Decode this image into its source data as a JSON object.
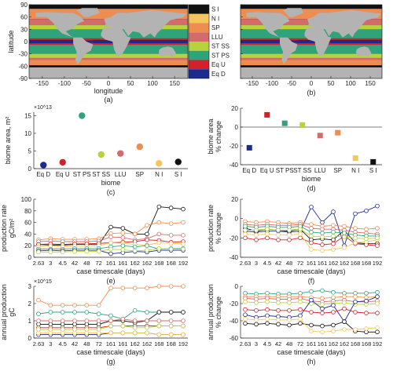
{
  "colors": {
    "land": "#b3b3b3",
    "eq_d": "#1c2a8c",
    "eq_u": "#d4202a",
    "st_ps": "#2fa37a",
    "st_ss": "#b6d33b",
    "llu": "#d46b6b",
    "sp": "#ed8d51",
    "n_i": "#f6c65e",
    "s_i": "#111111",
    "axis": "#222222",
    "zero_line": "#555555"
  },
  "panel_labels": [
    "(a)",
    "(b)",
    "(c)",
    "(d)",
    "(e)",
    "(f)",
    "(g)",
    "(h)"
  ],
  "legend": {
    "entries": [
      "S I",
      "N I",
      "SP",
      "LLU",
      "ST SS",
      "ST PS",
      "Eq U",
      "Eq D"
    ],
    "colors": [
      "#111111",
      "#f6c65e",
      "#ed8d51",
      "#d46b6b",
      "#b6d33b",
      "#2fa37a",
      "#d4202a",
      "#1c2a8c"
    ]
  },
  "maps": {
    "ylabel": "latitude",
    "xlabel": "longitude",
    "yticks": [
      "90",
      "60",
      "30",
      "0",
      "-30",
      "-60",
      "-90"
    ],
    "xticks": [
      "-150",
      "-100",
      "-50",
      "0",
      "50",
      "100",
      "150"
    ]
  },
  "chart_data": [
    {
      "panel": "c",
      "type": "scatter",
      "categories": [
        "Eq D",
        "Eq U",
        "ST PS",
        "ST SS",
        "LLU",
        "SP",
        "N I",
        "S I"
      ],
      "values": [
        1.0,
        1.8,
        15.0,
        4.0,
        4.3,
        6.2,
        1.5,
        1.9
      ],
      "colors": [
        "#1c2a8c",
        "#d4202a",
        "#2fa37a",
        "#b6d33b",
        "#d46b6b",
        "#ed8d51",
        "#f6c65e",
        "#111111"
      ],
      "multiplier": "×10^13",
      "ylabel": "biome area, m²",
      "xlabel": "biome",
      "ylim": [
        0,
        16
      ],
      "yticks": [
        0,
        5,
        10,
        15
      ]
    },
    {
      "panel": "d",
      "type": "scatter",
      "categories": [
        "Eq D",
        "Eq U",
        "ST PS",
        "ST SS",
        "LLU",
        "SP",
        "N I",
        "S I"
      ],
      "values": [
        -22,
        13,
        4,
        2,
        -9,
        -6,
        -33,
        -37
      ],
      "colors": [
        "#1c2a8c",
        "#d4202a",
        "#2fa37a",
        "#b6d33b",
        "#d46b6b",
        "#ed8d51",
        "#f6c65e",
        "#111111"
      ],
      "ylabel": "biome area % change",
      "xlabel": "biome",
      "ylim": [
        -40,
        20
      ],
      "yticks": [
        -40,
        -20,
        0,
        20
      ]
    },
    {
      "panel": "e",
      "type": "line",
      "categories": [
        "2.63",
        "3",
        "4.5",
        "42",
        "48",
        "72",
        "161",
        "161",
        "162",
        "162",
        "168",
        "168",
        "192"
      ],
      "xticklabels": [
        "2.63",
        "3",
        "4.5",
        "42",
        "48",
        "72",
        "161",
        "161",
        "162",
        "162",
        "168",
        "168",
        "192"
      ],
      "ylabel": "production rate gC/m²",
      "xlabel": "case timescale (days)",
      "ylim": [
        0,
        100
      ],
      "yticks": [
        0,
        20,
        40,
        60,
        80,
        100
      ],
      "series": [
        {
          "color": "#111111",
          "values": [
            22,
            21,
            21,
            22,
            22,
            22,
            52,
            50,
            40,
            40,
            87,
            85,
            83
          ]
        },
        {
          "color": "#ed8d51",
          "values": [
            30,
            32,
            31,
            31,
            31,
            32,
            41,
            42,
            40,
            55,
            60,
            58,
            60
          ]
        },
        {
          "color": "#d46b6b",
          "values": [
            27,
            28,
            27,
            27,
            27,
            28,
            35,
            34,
            30,
            32,
            40,
            38,
            38
          ]
        },
        {
          "color": "#d4202a",
          "values": [
            22,
            23,
            22,
            23,
            23,
            24,
            25,
            26,
            27,
            30,
            29,
            26,
            27
          ]
        },
        {
          "color": "#f6c65e",
          "values": [
            18,
            19,
            18,
            19,
            19,
            20,
            25,
            24,
            22,
            21,
            25,
            24,
            23
          ]
        },
        {
          "color": "#2fa37a",
          "values": [
            14,
            14,
            14,
            15,
            15,
            15,
            18,
            20,
            18,
            20,
            14,
            15,
            15
          ]
        },
        {
          "color": "#1c2a8c",
          "values": [
            11,
            12,
            11,
            12,
            12,
            12,
            6,
            8,
            10,
            9,
            12,
            12,
            12
          ]
        },
        {
          "color": "#b6d33b",
          "values": [
            9,
            9,
            9,
            10,
            10,
            10,
            14,
            13,
            11,
            12,
            15,
            14,
            14
          ]
        }
      ]
    },
    {
      "panel": "f",
      "type": "line",
      "categories": [
        "2.63",
        "3",
        "4.5",
        "42",
        "48",
        "72",
        "161",
        "161",
        "162",
        "162",
        "168",
        "168",
        "192"
      ],
      "xticklabels": [
        "2.63",
        "3",
        "4.5",
        "42",
        "48",
        "72",
        "161",
        "161",
        "162",
        "162",
        "168",
        "168",
        "192"
      ],
      "ylabel": "production rate % change",
      "xlabel": "case timescale (days)",
      "ylim": [
        -40,
        20
      ],
      "yticks": [
        -40,
        -20,
        0,
        20
      ],
      "series": [
        {
          "color": "#1c2a8c",
          "values": [
            -13,
            -14,
            -13,
            -13,
            -14,
            -13,
            12,
            -4,
            7,
            -28,
            5,
            8,
            13
          ]
        },
        {
          "color": "#111111",
          "values": [
            -10,
            -13,
            -11,
            -12,
            -13,
            -11,
            -22,
            -21,
            -22,
            -12,
            -25,
            -26,
            -26
          ]
        },
        {
          "color": "#d4202a",
          "values": [
            -20,
            -22,
            -20,
            -22,
            -22,
            -20,
            -25,
            -27,
            -26,
            -18,
            -26,
            -27,
            -28
          ]
        },
        {
          "color": "#ed8d51",
          "values": [
            -3,
            -4,
            -3,
            -4,
            -5,
            -4,
            -6,
            -8,
            -7,
            -8,
            -10,
            -11,
            -10
          ]
        },
        {
          "color": "#d46b6b",
          "values": [
            -6,
            -7,
            -6,
            -7,
            -7,
            -6,
            -10,
            -11,
            -11,
            -12,
            -14,
            -15,
            -16
          ]
        },
        {
          "color": "#2fa37a",
          "values": [
            -8,
            -9,
            -8,
            -9,
            -9,
            -8,
            -14,
            -15,
            -14,
            -15,
            -17,
            -18,
            -18
          ]
        },
        {
          "color": "#f6c65e",
          "values": [
            -16,
            -17,
            -16,
            -17,
            -17,
            -16,
            -32,
            -33,
            -32,
            -30,
            -25,
            -24,
            -22
          ]
        },
        {
          "color": "#b6d33b",
          "values": [
            -12,
            -12,
            -11,
            -12,
            -12,
            -11,
            -18,
            -19,
            -18,
            -19,
            -20,
            -21,
            -20
          ]
        }
      ]
    },
    {
      "panel": "g",
      "type": "line",
      "categories": [
        "2.63",
        "3",
        "4.5",
        "42",
        "48",
        "72",
        "161",
        "161",
        "162",
        "162",
        "168",
        "168",
        "192"
      ],
      "xticklabels": [
        "2.63",
        "3",
        "4.5",
        "42",
        "48",
        "72",
        "161",
        "161",
        "162",
        "162",
        "168",
        "168",
        "192"
      ],
      "multiplier": "×10^15",
      "ylabel": "annual production gC",
      "xlabel": "case timescale (days)",
      "ylim": [
        0,
        3
      ],
      "yticks": [
        0,
        1,
        2,
        3
      ],
      "series": [
        {
          "color": "#ed8d51",
          "values": [
            2.2,
            1.9,
            1.9,
            1.9,
            1.9,
            1.9,
            2.9,
            2.9,
            2.9,
            2.9,
            3.0,
            3.0,
            3.0
          ]
        },
        {
          "color": "#2fa37a",
          "values": [
            1.4,
            1.5,
            1.5,
            1.5,
            1.5,
            1.4,
            1.3,
            1.1,
            1.6,
            1.5,
            1.5,
            1.5,
            1.5
          ]
        },
        {
          "color": "#111111",
          "values": [
            0.8,
            0.8,
            0.8,
            0.8,
            0.8,
            0.8,
            1.0,
            1.0,
            0.9,
            1.0,
            1.5,
            1.5,
            1.5
          ]
        },
        {
          "color": "#d46b6b",
          "values": [
            1.0,
            1.0,
            1.0,
            1.0,
            1.0,
            1.0,
            1.0,
            1.1,
            1.0,
            1.0,
            1.0,
            1.0,
            1.0
          ]
        },
        {
          "color": "#d4202a",
          "values": [
            0.6,
            0.6,
            0.6,
            0.6,
            0.6,
            0.6,
            0.7,
            0.7,
            0.7,
            0.7,
            0.7,
            0.7,
            0.7
          ]
        },
        {
          "color": "#b6d33b",
          "values": [
            0.5,
            0.5,
            0.5,
            0.5,
            0.5,
            0.5,
            0.7,
            0.7,
            0.6,
            0.6,
            0.7,
            0.7,
            0.7
          ]
        },
        {
          "color": "#1c2a8c",
          "values": [
            0.2,
            0.2,
            0.2,
            0.2,
            0.2,
            0.2,
            0.3,
            0.3,
            0.3,
            0.3,
            0.2,
            0.2,
            0.2
          ]
        },
        {
          "color": "#f6c65e",
          "values": [
            0.3,
            0.3,
            0.3,
            0.3,
            0.3,
            0.3,
            0.3,
            0.3,
            0.3,
            0.3,
            0.2,
            0.2,
            0.2
          ]
        }
      ]
    },
    {
      "panel": "h",
      "type": "line",
      "categories": [
        "2.63",
        "3",
        "4.5",
        "42",
        "48",
        "72",
        "161",
        "161",
        "162",
        "162",
        "168",
        "168",
        "192"
      ],
      "xticklabels": [
        "2.63",
        "3",
        "4.5",
        "42",
        "48",
        "72",
        "161",
        "161",
        "162",
        "162",
        "168",
        "168",
        "192"
      ],
      "ylabel": "annual production % change",
      "xlabel": "case timescale (days)",
      "ylim": [
        -60,
        0
      ],
      "yticks": [
        -60,
        -40,
        -20,
        0
      ],
      "series": [
        {
          "color": "#2fa37a",
          "values": [
            -8,
            -9,
            -8,
            -9,
            -9,
            -8,
            -6,
            -5,
            -7,
            -8,
            -8,
            -8,
            -7
          ]
        },
        {
          "color": "#ed8d51",
          "values": [
            -12,
            -12,
            -12,
            -12,
            -12,
            -12,
            -13,
            -14,
            -13,
            -12,
            -12,
            -13,
            -12
          ]
        },
        {
          "color": "#d46b6b",
          "values": [
            -14,
            -15,
            -14,
            -15,
            -15,
            -14,
            -17,
            -18,
            -17,
            -16,
            -18,
            -18,
            -17
          ]
        },
        {
          "color": "#b6d33b",
          "values": [
            -18,
            -19,
            -18,
            -19,
            -19,
            -18,
            -20,
            -21,
            -20,
            -19,
            -21,
            -21,
            -20
          ]
        },
        {
          "color": "#1c2a8c",
          "values": [
            -33,
            -36,
            -34,
            -35,
            -36,
            -34,
            -16,
            -26,
            -22,
            -41,
            -18,
            -17,
            -12
          ]
        },
        {
          "color": "#d4202a",
          "values": [
            -27,
            -28,
            -27,
            -28,
            -28,
            -27,
            -30,
            -31,
            -30,
            -26,
            -30,
            -31,
            -31
          ]
        },
        {
          "color": "#111111",
          "values": [
            -43,
            -44,
            -43,
            -44,
            -45,
            -43,
            -45,
            -46,
            -45,
            -41,
            -52,
            -53,
            -53
          ]
        },
        {
          "color": "#f6c65e",
          "values": [
            -38,
            -39,
            -38,
            -39,
            -39,
            -38,
            -52,
            -53,
            -52,
            -50,
            -50,
            -49,
            -48
          ]
        }
      ]
    }
  ]
}
